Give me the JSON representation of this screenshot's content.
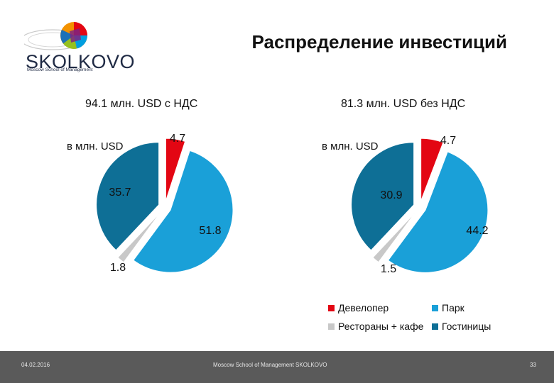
{
  "header": {
    "title": "Распределение инвестиций",
    "logo_word": "SKOLKOVO",
    "logo_sub": "Moscow School of Management"
  },
  "colors": {
    "red": "#e30613",
    "blue": "#1aa0d8",
    "gray": "#c8c8c8",
    "teal": "#0e6f96"
  },
  "legend": [
    {
      "label": "Девелопер",
      "color": "#e30613"
    },
    {
      "label": "Парк",
      "color": "#1aa0d8"
    },
    {
      "label": "Рестораны + кафе",
      "color": "#c8c8c8"
    },
    {
      "label": "Гостиницы",
      "color": "#0e6f96"
    }
  ],
  "chart_data": [
    {
      "type": "pie",
      "title": "94.1 млн. USD с НДС",
      "unit": "в млн. USD",
      "categories": [
        "Девелопер",
        "Парк",
        "Рестораны + кафе",
        "Гостиницы"
      ],
      "values": [
        4.7,
        51.8,
        1.8,
        35.7
      ],
      "labels": [
        "4.7",
        "51.8",
        "1.8",
        "35.7"
      ]
    },
    {
      "type": "pie",
      "title": "81.3 млн. USD без НДС",
      "unit": "в млн. USD",
      "categories": [
        "Девелопер",
        "Парк",
        "Рестораны + кафе",
        "Гостиницы"
      ],
      "values": [
        4.7,
        44.2,
        1.5,
        30.9
      ],
      "labels": [
        "4.7",
        "44.2",
        "1.5",
        "30.9"
      ]
    }
  ],
  "footer": {
    "date": "04.02.2016",
    "center": "Moscow School of Management SKOLKOVO",
    "page": "33"
  }
}
